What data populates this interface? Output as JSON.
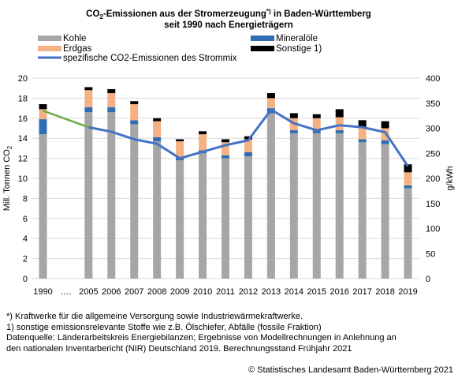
{
  "chart_data": {
    "type": "bar",
    "title_line1_pre": "CO",
    "title_line1_sub": "2",
    "title_line1_post": "-Emissionen aus der Stromerzeugung",
    "title_line1_sup": "*)",
    "title_line1_end": " in Baden-Württemberg",
    "title_line2": "seit 1990 nach Energieträgern",
    "categories": [
      "1990",
      "….",
      "2005",
      "2006",
      "2007",
      "2008",
      "2009",
      "2010",
      "2011",
      "2012",
      "2013",
      "2014",
      "2015",
      "2016",
      "2017",
      "2018",
      "2019"
    ],
    "series": [
      {
        "name": "Kohle",
        "color": "#a6a6a6",
        "values": [
          14.4,
          null,
          16.6,
          16.6,
          15.4,
          13.7,
          11.8,
          12.5,
          12.0,
          12.2,
          16.5,
          14.5,
          14.5,
          14.5,
          13.6,
          13.4,
          9.0
        ]
      },
      {
        "name": "Mineralöle",
        "color": "#2f6eb5",
        "values": [
          1.5,
          null,
          0.5,
          0.5,
          0.4,
          0.4,
          0.3,
          0.3,
          0.3,
          0.4,
          0.5,
          0.3,
          0.3,
          0.3,
          0.3,
          0.4,
          0.3
        ]
      },
      {
        "name": "Erdgas",
        "color": "#f5b183",
        "values": [
          1.0,
          null,
          1.7,
          1.4,
          1.6,
          1.6,
          1.6,
          1.6,
          1.3,
          1.3,
          1.0,
          1.2,
          1.2,
          1.3,
          1.2,
          1.2,
          1.3
        ]
      },
      {
        "name": "Sonstige 1)",
        "color": "#000000",
        "values": [
          0.5,
          null,
          0.3,
          0.4,
          0.3,
          0.3,
          0.2,
          0.3,
          0.3,
          0.3,
          0.5,
          0.5,
          0.4,
          0.8,
          0.7,
          0.7,
          0.8
        ]
      }
    ],
    "line": {
      "name": "spezifische CO2-Emissionen des Strommix",
      "color": "#4472c4",
      "connector_color": "#70ad47",
      "values": [
        335,
        null,
        302,
        293,
        278,
        269,
        240,
        253,
        266,
        276,
        337,
        310,
        296,
        306,
        302,
        292,
        224
      ]
    },
    "ylabel_left_pre": "Mill. Tonnen CO",
    "ylabel_left_sub": "2",
    "ylabel_right": "g/kWh",
    "ylim": [
      0,
      20
    ],
    "ylim_right": [
      0,
      400
    ],
    "yticks": [
      "0",
      "2",
      "4",
      "6",
      "8",
      "10",
      "12",
      "14",
      "16",
      "18",
      "20"
    ],
    "yticks_right": [
      "0",
      "50",
      "100",
      "150",
      "200",
      "250",
      "300",
      "350",
      "400"
    ],
    "grid": true,
    "legend_position": "top"
  },
  "footnotes": [
    "*) Kraftwerke für die allgemeine Versorgung sowie Industriewärmekraftwerke.",
    "1) sonstige emissionsrelevante Stoffe wie z.B. Ölschiefer, Abfälle (fossile Fraktion)",
    "Datenquelle: Länderarbeitskreis Energiebilanzen; Ergebnisse von Modellrechnungen in Anlehnung an",
    "den nationalen Inventarbericht (NIR) Deutschland 2019. Berechnungsstand Frühjahr 2021"
  ],
  "source": "© Statistisches Landesamt Baden-Württemberg 2021"
}
